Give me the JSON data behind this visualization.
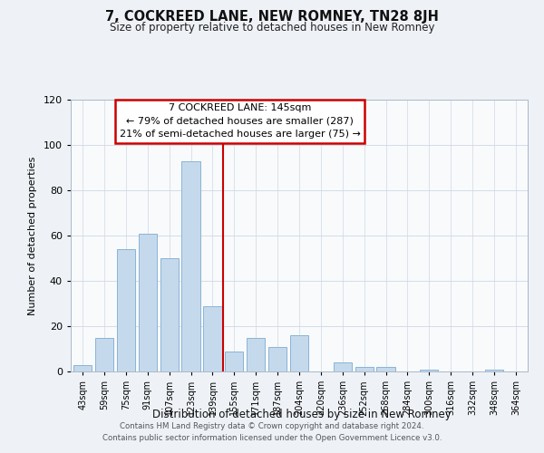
{
  "title": "7, COCKREED LANE, NEW ROMNEY, TN28 8JH",
  "subtitle": "Size of property relative to detached houses in New Romney",
  "xlabel": "Distribution of detached houses by size in New Romney",
  "ylabel": "Number of detached properties",
  "categories": [
    "43sqm",
    "59sqm",
    "75sqm",
    "91sqm",
    "107sqm",
    "123sqm",
    "139sqm",
    "155sqm",
    "171sqm",
    "187sqm",
    "204sqm",
    "220sqm",
    "236sqm",
    "252sqm",
    "268sqm",
    "284sqm",
    "300sqm",
    "316sqm",
    "332sqm",
    "348sqm",
    "364sqm"
  ],
  "values": [
    3,
    15,
    54,
    61,
    50,
    93,
    29,
    9,
    15,
    11,
    16,
    0,
    4,
    2,
    2,
    0,
    1,
    0,
    0,
    1,
    0
  ],
  "bar_color": "#c5d9ed",
  "bar_edge_color": "#8ab4d4",
  "vline_x_index": 6.5,
  "vline_color": "#cc0000",
  "annotation_title": "7 COCKREED LANE: 145sqm",
  "annotation_line1": "← 79% of detached houses are smaller (287)",
  "annotation_line2": "21% of semi-detached houses are larger (75) →",
  "annotation_box_color": "#ffffff",
  "annotation_box_edge_color": "#cc0000",
  "ylim": [
    0,
    120
  ],
  "yticks": [
    0,
    20,
    40,
    60,
    80,
    100,
    120
  ],
  "footer1": "Contains HM Land Registry data © Crown copyright and database right 2024.",
  "footer2": "Contains public sector information licensed under the Open Government Licence v3.0.",
  "background_color": "#eef2f7",
  "plot_bg_color": "#f8fafc",
  "grid_color": "#d0d8e4"
}
